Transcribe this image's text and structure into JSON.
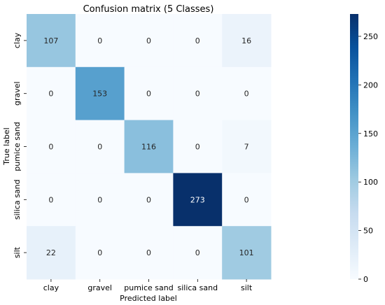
{
  "chart_data": {
    "type": "heatmap",
    "title": "Confusion matrix (5 Classes)",
    "xlabel": "Predicted label",
    "ylabel": "True label",
    "x_categories": [
      "clay",
      "gravel",
      "pumice sand",
      "silica sand",
      "silt"
    ],
    "y_categories": [
      "clay",
      "gravel",
      "pumice sand",
      "silica sand",
      "silt"
    ],
    "values": [
      [
        107,
        0,
        0,
        0,
        16
      ],
      [
        0,
        153,
        0,
        0,
        0
      ],
      [
        0,
        0,
        116,
        0,
        7
      ],
      [
        0,
        0,
        0,
        273,
        0
      ],
      [
        22,
        0,
        0,
        0,
        101
      ]
    ],
    "colormap": "Blues",
    "colorbar": {
      "range": [
        0,
        273
      ],
      "ticks": [
        0,
        50,
        100,
        150,
        200,
        250
      ]
    }
  }
}
